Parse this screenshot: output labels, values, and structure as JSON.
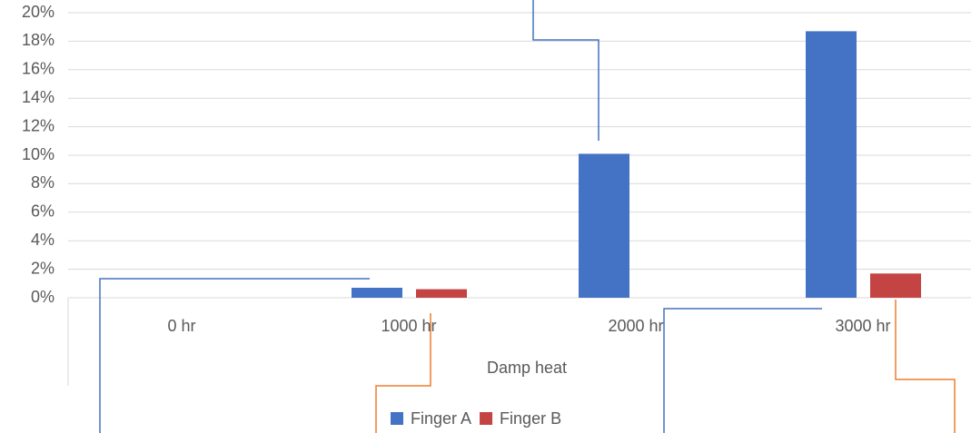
{
  "chart_data": {
    "type": "bar",
    "x_label": "Damp heat",
    "categories": [
      "0 hr",
      "1000 hr",
      "2000 hr",
      "3000 hr"
    ],
    "series": [
      {
        "name": "Finger A",
        "color": "#4472c4",
        "values": [
          0,
          0.7,
          10.1,
          18.7
        ]
      },
      {
        "name": "Finger B",
        "color": "#c44343",
        "values": [
          0,
          0.6,
          0,
          1.7
        ]
      }
    ],
    "ylim": [
      0,
      20
    ],
    "yticks": [
      {
        "value": 0,
        "label": "0%"
      },
      {
        "value": 2,
        "label": "2%"
      },
      {
        "value": 4,
        "label": "4%"
      },
      {
        "value": 6,
        "label": "6%"
      },
      {
        "value": 8,
        "label": "8%"
      },
      {
        "value": 10,
        "label": "10%"
      },
      {
        "value": 12,
        "label": "12%"
      },
      {
        "value": 14,
        "label": "14%"
      },
      {
        "value": 16,
        "label": "16%"
      },
      {
        "value": 18,
        "label": "18%"
      },
      {
        "value": 20,
        "label": "20%"
      }
    ],
    "grid": true,
    "legend": "bottom"
  }
}
